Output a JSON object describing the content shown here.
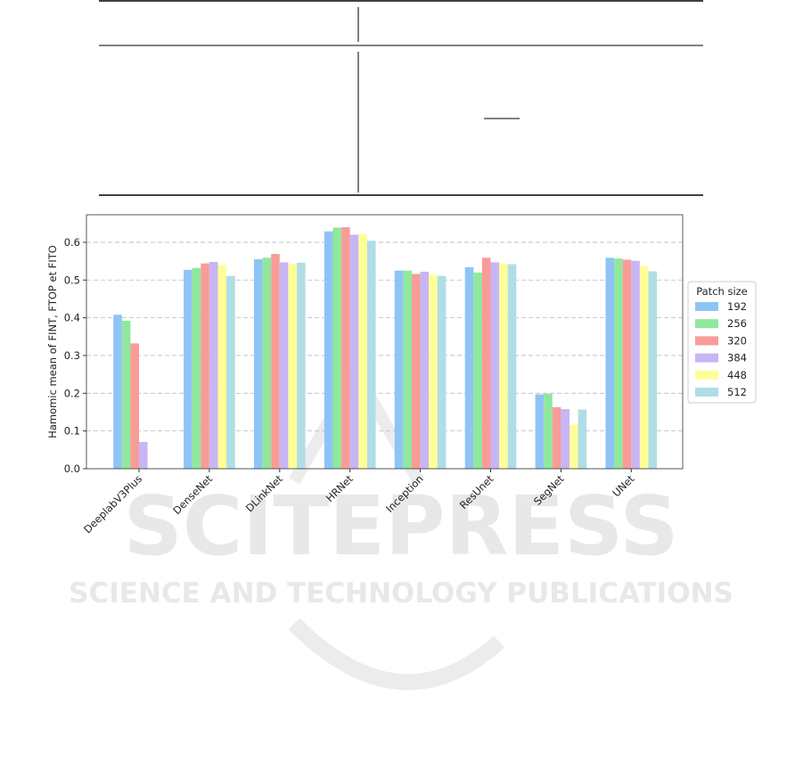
{
  "chart_data": {
    "type": "bar",
    "ylabel": "Hamomic mean of FINT, FTOP et FITO",
    "categories": [
      "DeeplabV3Plus",
      "DenseNet",
      "DLinkNet",
      "HRNet",
      "Inception",
      "ResUnet",
      "SegNet",
      "UNet"
    ],
    "series": [
      {
        "name": "192",
        "color": "#8ec4f5",
        "values": [
          0.408,
          0.527,
          0.555,
          0.629,
          0.525,
          0.534,
          0.197,
          0.559
        ]
      },
      {
        "name": "256",
        "color": "#90e89c",
        "values": [
          0.392,
          0.532,
          0.559,
          0.639,
          0.525,
          0.52,
          0.199,
          0.557
        ]
      },
      {
        "name": "320",
        "color": "#f99c98",
        "values": [
          0.332,
          0.544,
          0.569,
          0.64,
          0.516,
          0.559,
          0.163,
          0.554
        ]
      },
      {
        "name": "384",
        "color": "#c8b5f5",
        "values": [
          0.071,
          0.548,
          0.547,
          0.62,
          0.522,
          0.547,
          0.158,
          0.551
        ]
      },
      {
        "name": "448",
        "color": "#fefe98",
        "values": [
          null,
          0.54,
          0.543,
          0.622,
          0.514,
          0.544,
          0.117,
          0.537
        ]
      },
      {
        "name": "512",
        "color": "#b0dde6",
        "values": [
          null,
          0.511,
          0.546,
          0.604,
          0.511,
          0.542,
          0.157,
          0.523
        ]
      }
    ],
    "legend_title": "Patch size",
    "legend_position": "right",
    "ylim": [
      0,
      0.673
    ],
    "yticks": [
      {
        "value": 0,
        "label": "0.0"
      },
      0.1,
      0.2,
      0.3,
      0.4,
      0.5,
      0.6
    ],
    "grid": true
  },
  "watermark": {
    "title": "SCITEPRESS",
    "subtitle": "SCIENCE AND TECHNOLOGY PUBLICATIONS"
  }
}
